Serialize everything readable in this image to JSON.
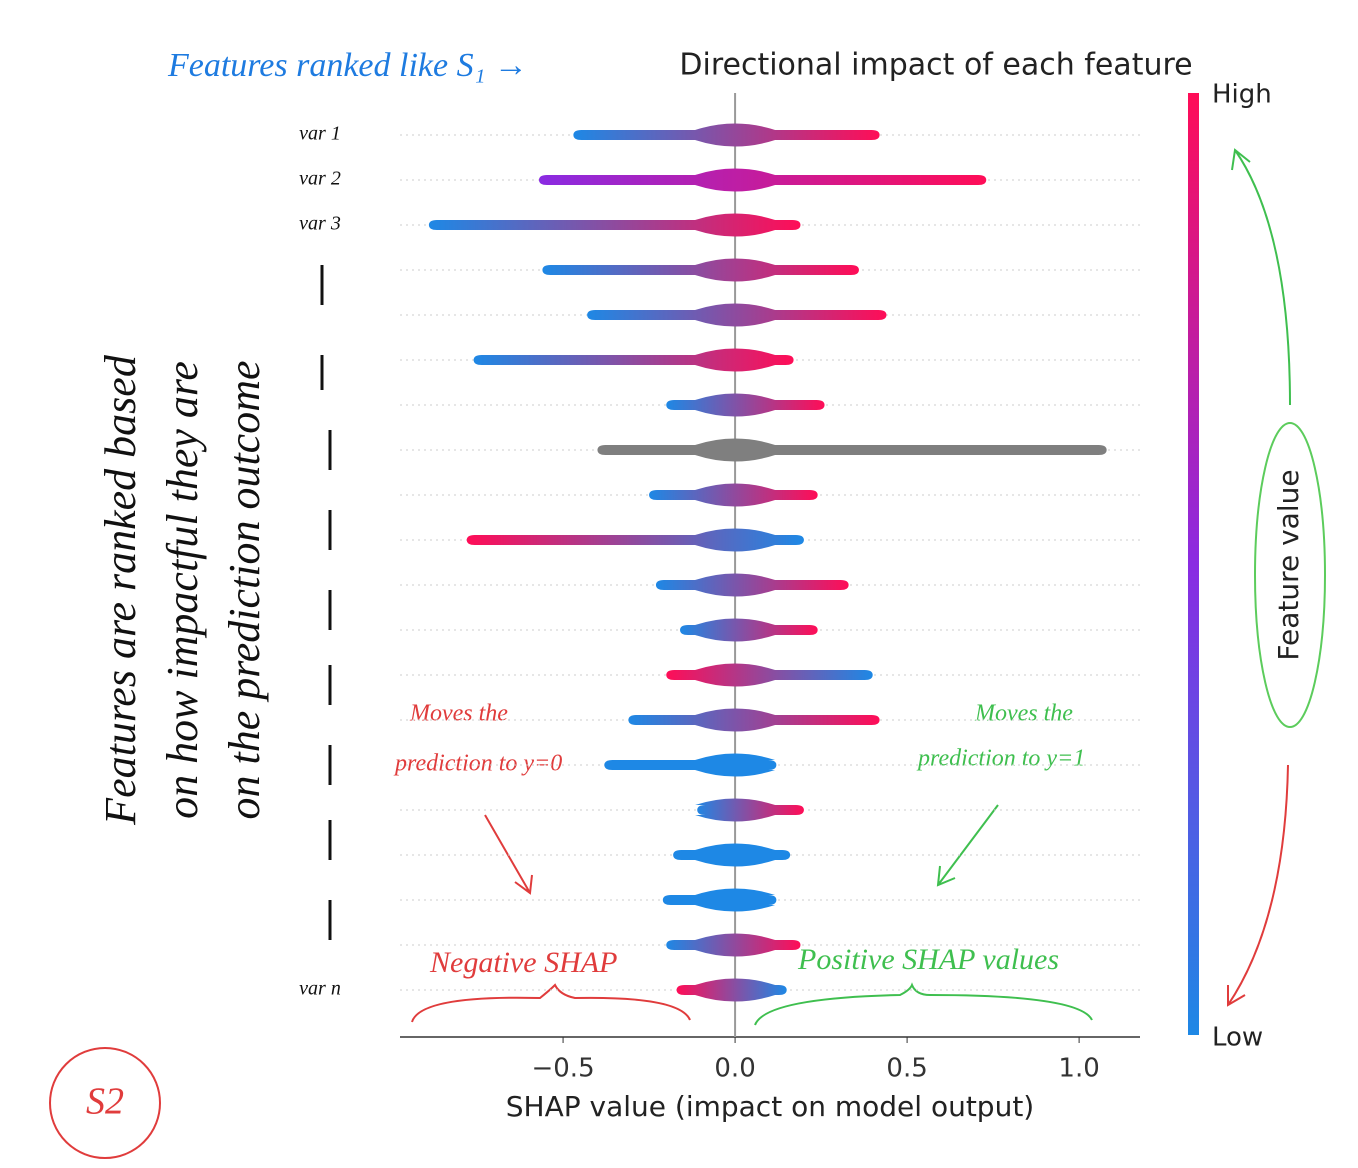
{
  "chart_data": {
    "type": "beeswarm",
    "title": "Directional impact of each feature",
    "x_label": "SHAP value (impact on model output)",
    "categories": [
      "var 1",
      "var 2",
      "var 3",
      null,
      null,
      null,
      null,
      null,
      null,
      null,
      null,
      null,
      null,
      null,
      null,
      null,
      null,
      null,
      null,
      "var n"
    ],
    "min": [
      -0.47,
      -0.57,
      -0.89,
      -0.56,
      -0.43,
      -0.76,
      -0.2,
      -0.4,
      -0.25,
      -0.78,
      -0.23,
      -0.16,
      -0.2,
      -0.31,
      -0.38,
      -0.11,
      -0.18,
      -0.21,
      -0.2,
      -0.17
    ],
    "max": [
      0.42,
      0.73,
      0.19,
      0.36,
      0.44,
      0.17,
      0.26,
      1.08,
      0.24,
      0.2,
      0.33,
      0.24,
      0.4,
      0.42,
      0.12,
      0.2,
      0.16,
      0.12,
      0.19,
      0.15
    ],
    "row_colors": [
      [
        "#1e88e5",
        "#ff0d57"
      ],
      [
        "#8a2be2",
        "#ff0d57"
      ],
      [
        "#1e88e5",
        "#ff0d57"
      ],
      [
        "#1e88e5",
        "#ff0d57"
      ],
      [
        "#1e88e5",
        "#ff0d57"
      ],
      [
        "#1e88e5",
        "#ff0d57"
      ],
      [
        "#1e88e5",
        "#ff0d57"
      ],
      [
        "#7f7f7f",
        "#7f7f7f"
      ],
      [
        "#1e88e5",
        "#ff0d57"
      ],
      [
        "#ff0d57",
        "#1e88e5"
      ],
      [
        "#1e88e5",
        "#ff0d57"
      ],
      [
        "#1e88e5",
        "#ff0d57"
      ],
      [
        "#ff0d57",
        "#1e88e5"
      ],
      [
        "#1e88e5",
        "#ff0d57"
      ],
      [
        "#1e88e5",
        "#1e88e5"
      ],
      [
        "#1e88e5",
        "#ff0d57"
      ],
      [
        "#1e88e5",
        "#1e88e5"
      ],
      [
        "#1e88e5",
        "#1e88e5"
      ],
      [
        "#1e88e5",
        "#ff0d57"
      ],
      [
        "#ff0d57",
        "#1e88e5"
      ]
    ],
    "xlim": [
      -0.974,
      1.177
    ],
    "xticks": [
      {
        "value": -0.5,
        "label": "−0.5"
      },
      {
        "value": 0,
        "label": "0.0"
      },
      0.5,
      {
        "value": 1,
        "label": "1.0"
      }
    ],
    "colorbar": {
      "label": "Feature value",
      "high": "High",
      "low": "Low",
      "colors": [
        "#1e88e5",
        "#8a2be2",
        "#ff0d57"
      ]
    },
    "annotations": {
      "ranked_like": "Features ranked like S₁ →",
      "ranking_note": [
        "Features are ranked based",
        "on how impactful they are",
        "on the prediction outcome"
      ],
      "moves_0": [
        "Moves the",
        "prediction to y=0"
      ],
      "moves_1": [
        "Moves the",
        "prediction to y=1"
      ],
      "negative": "Negative SHAP",
      "positive": "Positive SHAP values",
      "badge": "S2"
    }
  }
}
